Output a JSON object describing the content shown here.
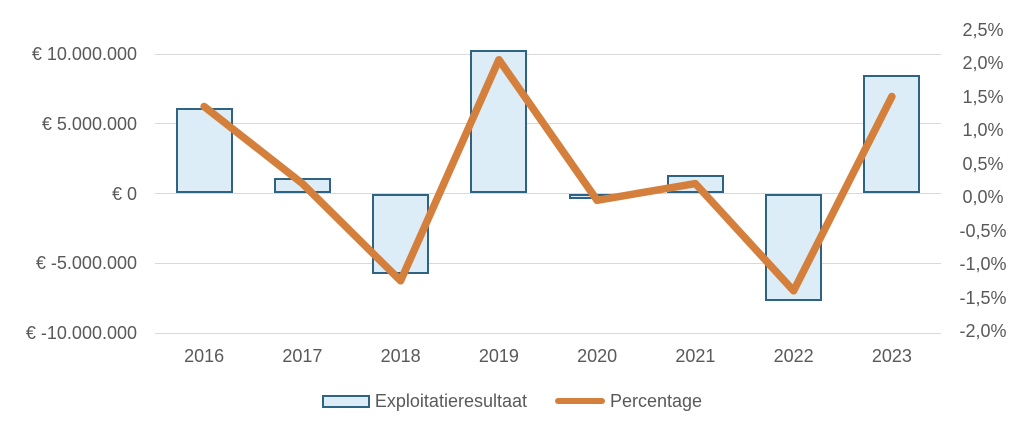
{
  "chart_data": {
    "type": "combo",
    "title": "",
    "categories": [
      "2016",
      "2017",
      "2018",
      "2019",
      "2020",
      "2021",
      "2022",
      "2023"
    ],
    "series": [
      {
        "name": "Exploitatieresultaat",
        "type": "bar",
        "axis": "left",
        "values": [
          6100000,
          1100000,
          -5800000,
          10300000,
          -400000,
          1300000,
          -7700000,
          8500000
        ],
        "fill": "#dcedf7",
        "border_color": "#2e6384"
      },
      {
        "name": "Percentage",
        "type": "line",
        "axis": "right",
        "values": [
          1.35,
          0.2,
          -1.25,
          2.05,
          -0.05,
          0.2,
          -1.4,
          1.5
        ],
        "color": "#d4803c"
      }
    ],
    "left_axis": {
      "tick_labels": [
        "€ 10.000.000",
        "€ 5.000.000",
        "€ 0",
        "€ -5.000.000",
        "€ -10.000.000"
      ],
      "tick_values": [
        10000000,
        5000000,
        0,
        -5000000,
        -10000000
      ],
      "range": [
        -10000000,
        12500000
      ]
    },
    "right_axis": {
      "tick_labels": [
        "2,5%",
        "2,0%",
        "1,5%",
        "1,0%",
        "0,5%",
        "0,0%",
        "-0,5%",
        "-1,0%",
        "-1,5%",
        "-2,0%"
      ],
      "tick_values": [
        2.5,
        2.0,
        1.5,
        1.0,
        0.5,
        0.0,
        -0.5,
        -1.0,
        -1.5,
        -2.0
      ],
      "range": [
        -2.0,
        2.5
      ]
    },
    "grid": "horizontal-major-only",
    "legend_position": "bottom",
    "colors": {
      "gridline": "#d9d9d9",
      "text": "#595959",
      "background": "#ffffff"
    }
  }
}
